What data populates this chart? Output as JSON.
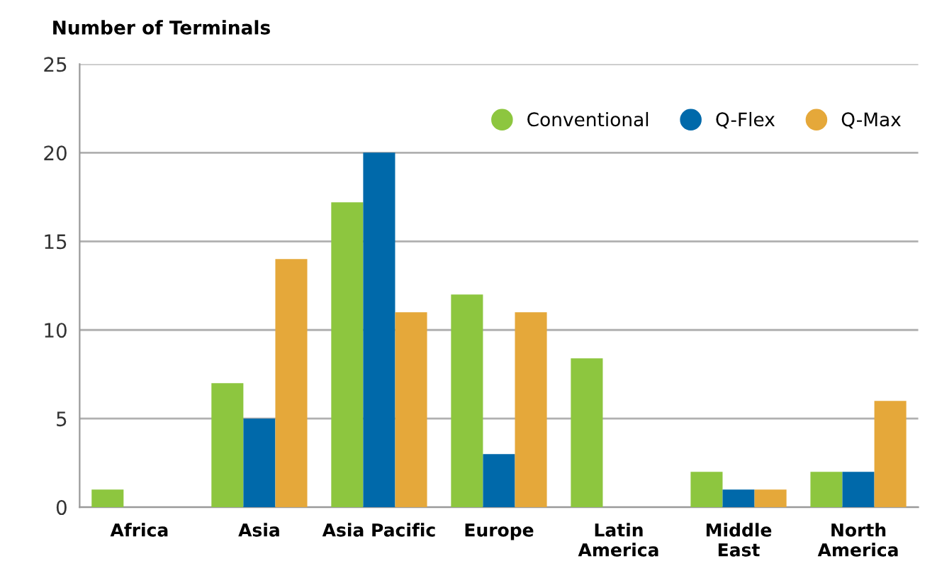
{
  "chart_data": {
    "type": "bar",
    "ylabel": "Number of Terminals",
    "categories": [
      "Africa",
      "Asia",
      "Asia Pacific",
      "Europe",
      "Latin\nAmerica",
      "Middle\nEast",
      "North\nAmerica"
    ],
    "series": [
      {
        "name": "Conventional",
        "color": "#8dc63f",
        "values": [
          1,
          7,
          17.2,
          12,
          8.4,
          2,
          2
        ]
      },
      {
        "name": "Q-Flex",
        "color": "#0069aa",
        "values": [
          0,
          5,
          20,
          3,
          0,
          1,
          2
        ]
      },
      {
        "name": "Q-Max",
        "color": "#e5a83a",
        "values": [
          0,
          14,
          11,
          11,
          0,
          1,
          6
        ]
      }
    ],
    "ylim": [
      0,
      25
    ],
    "yticks": [
      0,
      5,
      10,
      15,
      20,
      25
    ],
    "grid": "y",
    "legend": "top right"
  }
}
